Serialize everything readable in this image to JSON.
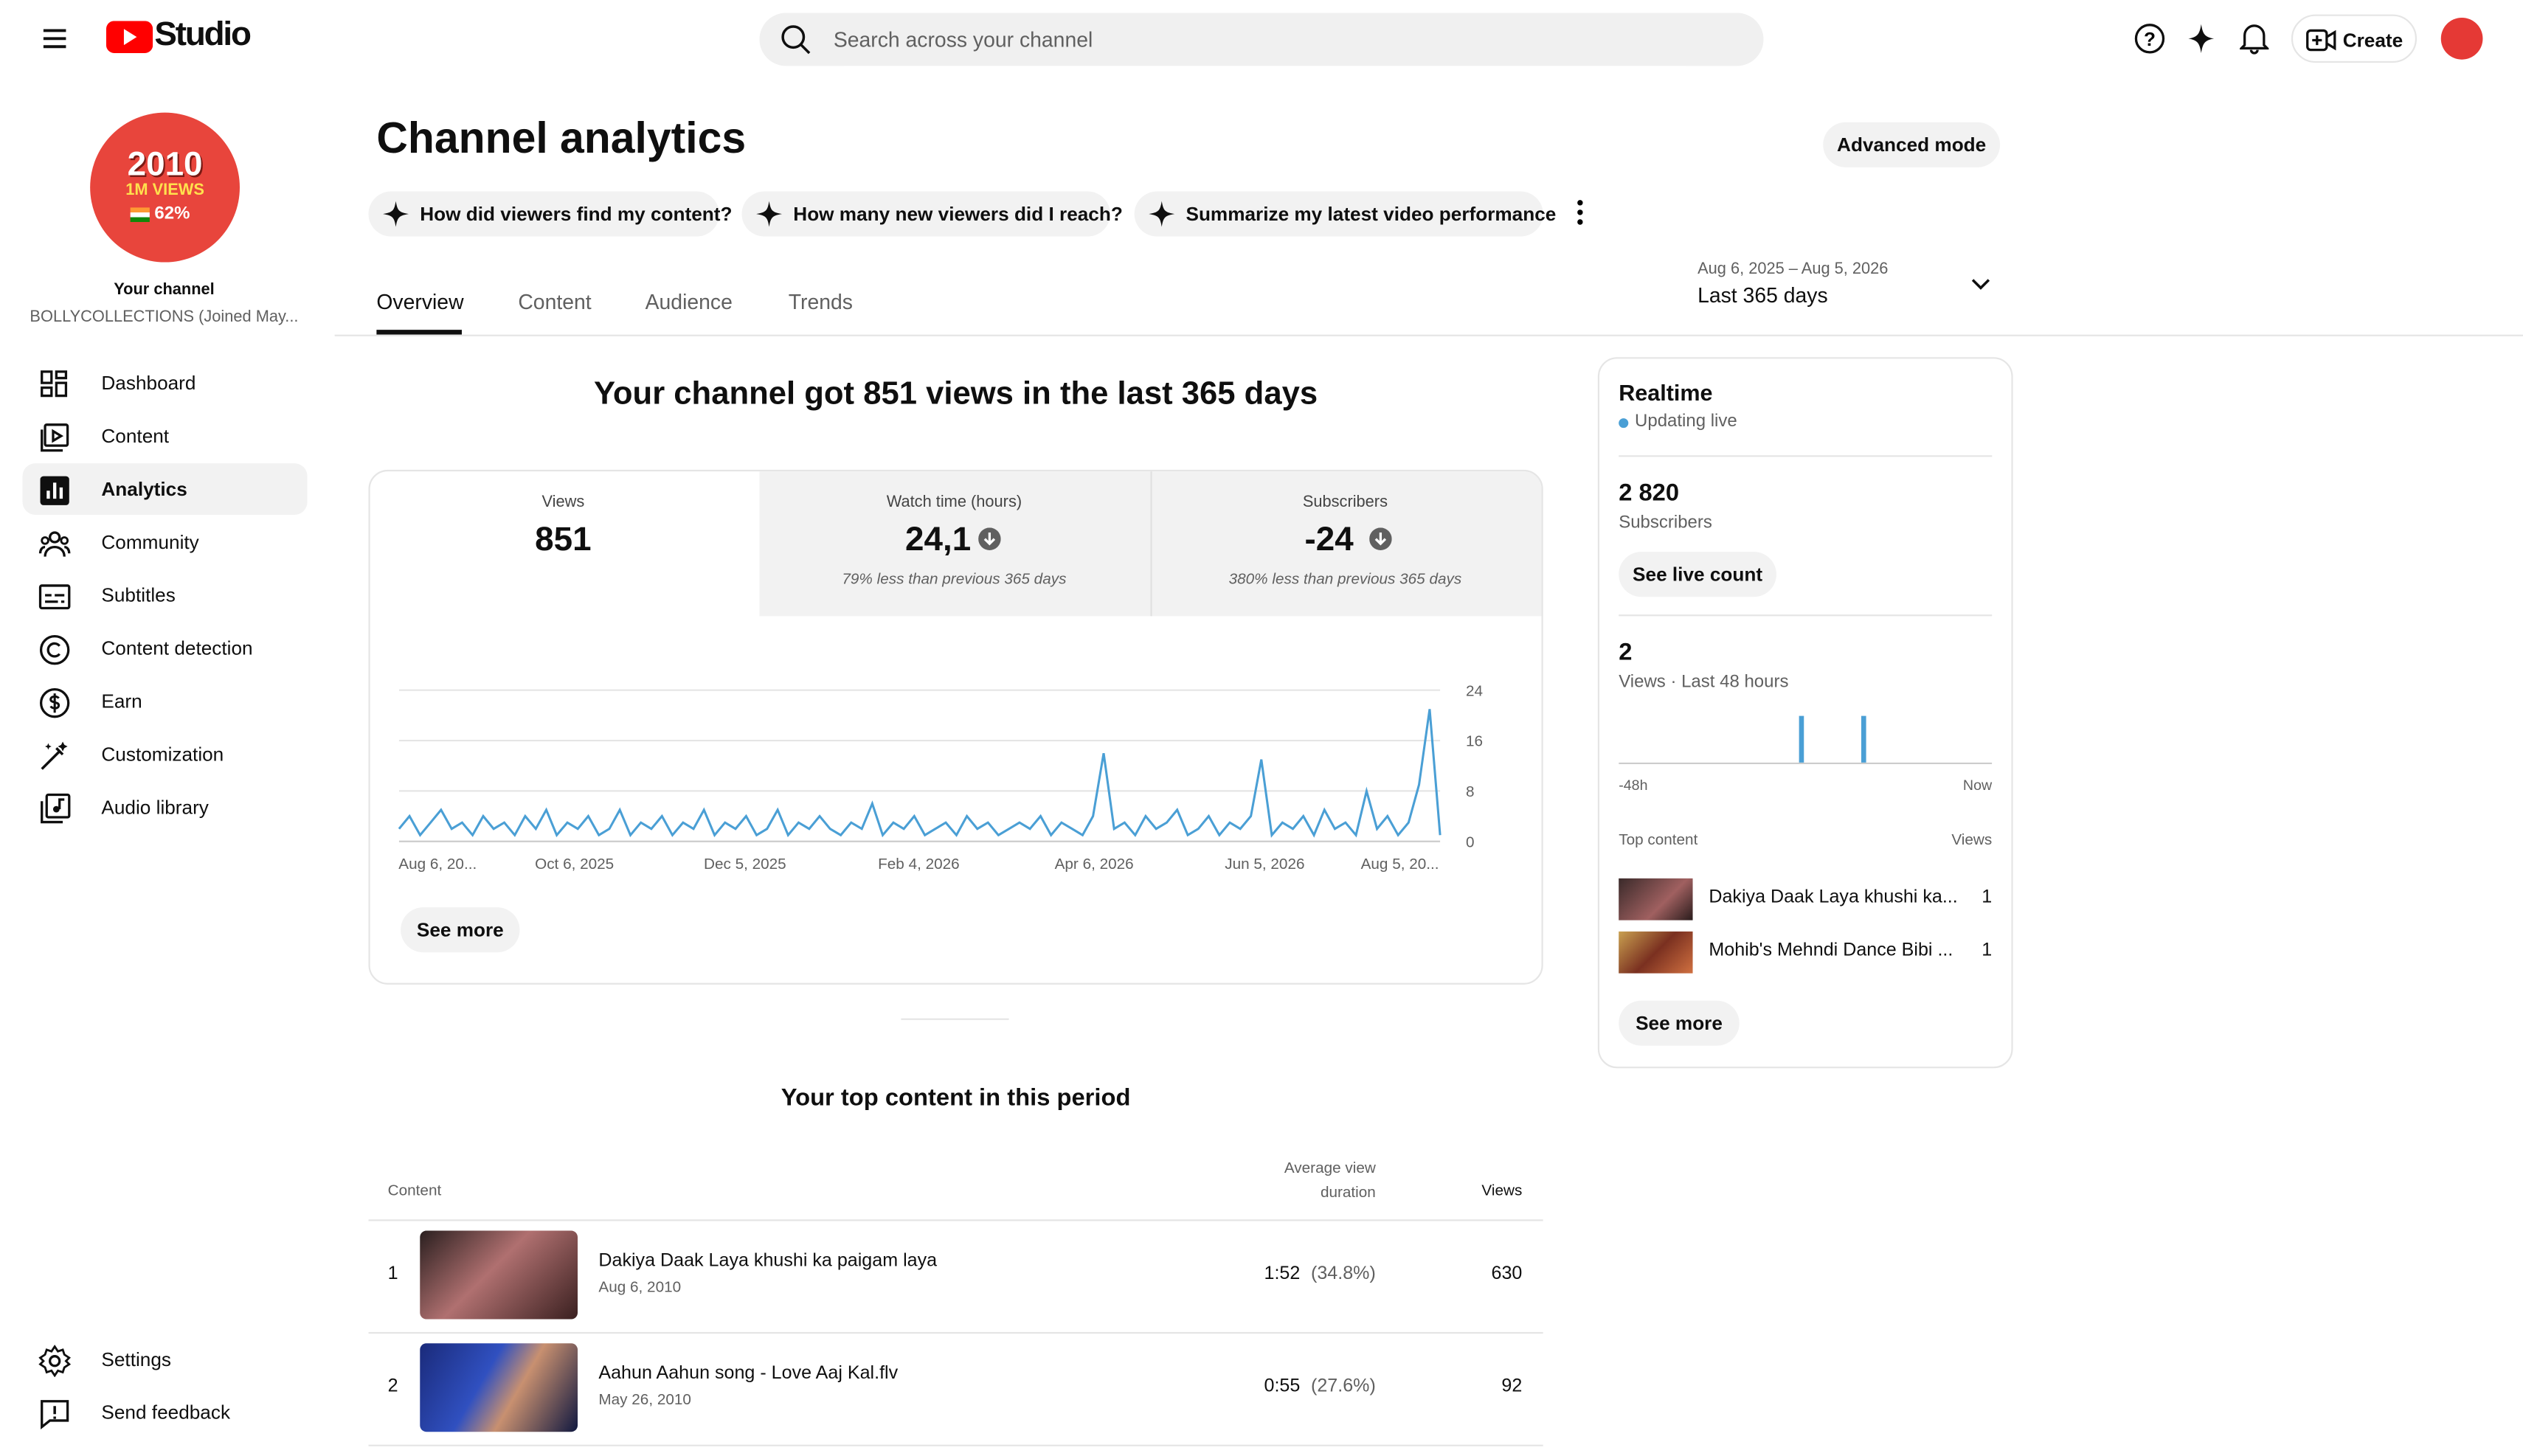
{
  "header": {
    "logo": "Studio",
    "search_placeholder": "Search across your channel",
    "create": "Create"
  },
  "sidebar": {
    "avatar": [
      "2010",
      "1M VIEWS",
      "62%"
    ],
    "channel_label": "Your channel",
    "channel_name": "BOLLYCOLLECTIONS (Joined May...",
    "nav": [
      "Dashboard",
      "Content",
      "Analytics",
      "Community",
      "Subtitles",
      "Content detection",
      "Earn",
      "Customization",
      "Audio library"
    ],
    "footer": [
      "Settings",
      "Send feedback"
    ]
  },
  "main": {
    "title": "Channel analytics",
    "advanced": "Advanced mode",
    "prompts": [
      "How did viewers find my content?",
      "How many new viewers did I reach?",
      "Summarize my latest video performance"
    ],
    "tabs": [
      "Overview",
      "Content",
      "Audience",
      "Trends"
    ],
    "date_range": "Aug 6, 2025 – Aug 5, 2026",
    "period": "Last 365 days",
    "headline": "Your channel got 851 views in the last 365 days",
    "metrics": [
      {
        "label": "Views",
        "value": "851"
      },
      {
        "label": "Watch time (hours)",
        "value": "24,1",
        "note": "79% less than previous 365 days"
      },
      {
        "label": "Subscribers",
        "value": "-24",
        "note": "380% less than previous 365 days"
      }
    ],
    "see_more": "See more",
    "top_content": {
      "title": "Your top content in this period",
      "headers": [
        "Content",
        "Average view duration",
        "Views"
      ],
      "rows": [
        [
          "1",
          "Dakiya Daak Laya khushi ka paigam laya",
          "Aug 6, 2010",
          "1:52",
          "(34.8%)",
          "630"
        ],
        [
          "2",
          "Aahun Aahun song - Love Aaj Kal.flv",
          "May 26, 2010",
          "0:55",
          "(27.6%)",
          "92"
        ]
      ]
    }
  },
  "chart_data": {
    "type": "line",
    "color": "#4a9fd5",
    "x_labels": [
      "Aug 6, 20...",
      "Oct 6, 2025",
      "Dec 5, 2025",
      "Feb 4, 2026",
      "Apr 6, 2026",
      "Jun 5, 2026",
      "Aug 5, 20..."
    ],
    "values": [
      2,
      4,
      1,
      3,
      5,
      2,
      3,
      1,
      4,
      2,
      3,
      1,
      4,
      2,
      5,
      1,
      3,
      2,
      4,
      1,
      2,
      5,
      1,
      3,
      2,
      4,
      1,
      3,
      2,
      5,
      1,
      3,
      2,
      4,
      1,
      2,
      5,
      1,
      3,
      2,
      4,
      2,
      1,
      3,
      2,
      6,
      1,
      3,
      2,
      4,
      1,
      2,
      3,
      1,
      4,
      2,
      3,
      1,
      2,
      3,
      2,
      4,
      1,
      3,
      2,
      1,
      4,
      14,
      2,
      3,
      1,
      4,
      2,
      3,
      5,
      1,
      2,
      4,
      1,
      3,
      2,
      4,
      13,
      1,
      3,
      2,
      4,
      1,
      5,
      2,
      3,
      1,
      8,
      2,
      4,
      1,
      3,
      9,
      21,
      1
    ],
    "ylim": [
      0,
      24
    ],
    "yticks": [
      0,
      8,
      16,
      24
    ],
    "grid": true
  },
  "realtime": {
    "title": "Realtime",
    "status": "Updating live",
    "subscribers": "2 820",
    "subscribers_label": "Subscribers",
    "live_count": "See live count",
    "views": "2",
    "views_label": "Views · Last 48 hours",
    "bars": {
      "type": "bar",
      "color": "#4a9fd5",
      "ylim": [
        0,
        1
      ],
      "values": [
        0,
        0,
        0,
        0,
        0,
        0,
        0,
        0,
        0,
        0,
        0,
        0,
        0,
        0,
        0,
        0,
        0,
        0,
        0,
        0,
        0,
        0,
        0,
        1,
        0,
        0,
        0,
        0,
        0,
        0,
        0,
        1,
        0,
        0,
        0,
        0,
        0,
        0,
        0,
        0,
        0,
        0,
        0,
        0,
        0,
        0,
        0,
        0
      ]
    },
    "axis_labels": [
      "-48h",
      "Now"
    ],
    "top_label": "Top content",
    "views_header": "Views",
    "rows": [
      [
        "Dakiya Daak Laya khushi ka...",
        "1"
      ],
      [
        "Mohib's Mehndi Dance Bibi ...",
        "1"
      ]
    ],
    "see_more": "See more"
  }
}
